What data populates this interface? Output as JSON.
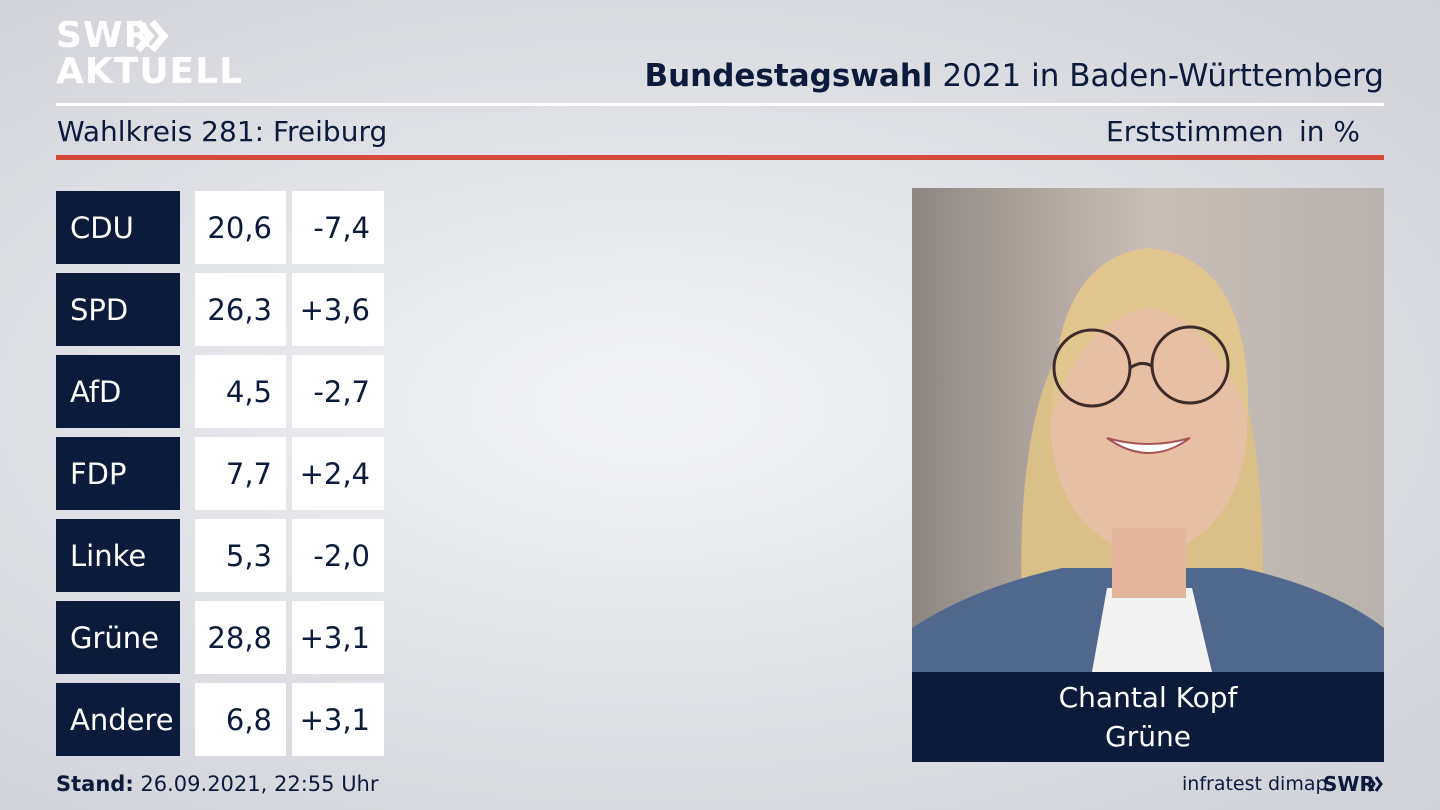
{
  "logo": {
    "line1": "SWR",
    "line2": "AKTUELL"
  },
  "header": {
    "title_bold": "Bundestagswahl",
    "title_rest": "2021 in Baden-Württemberg",
    "subtitle": "Wahlkreis 281: Freiburg",
    "vote_type": "Erststimmen",
    "unit": "in %"
  },
  "table": {
    "rows": [
      [
        "CDU",
        "20,6",
        "-7,4"
      ],
      [
        "SPD",
        "26,3",
        "+3,6"
      ],
      [
        "AfD",
        "4,5",
        "-2,7"
      ],
      [
        "FDP",
        "7,7",
        "+2,4"
      ],
      [
        "Linke",
        "5,3",
        "-2,0"
      ],
      [
        "Grüne",
        "28,8",
        "+3,1"
      ],
      [
        "Andere",
        "6,8",
        "+3,1"
      ]
    ]
  },
  "candidate": {
    "name": "Chantal Kopf",
    "party": "Grüne"
  },
  "footer": {
    "stand_label": "Stand:",
    "stand_value": "26.09.2021, 22:55 Uhr",
    "source": "infratest dimap",
    "brand": "SWR"
  }
}
